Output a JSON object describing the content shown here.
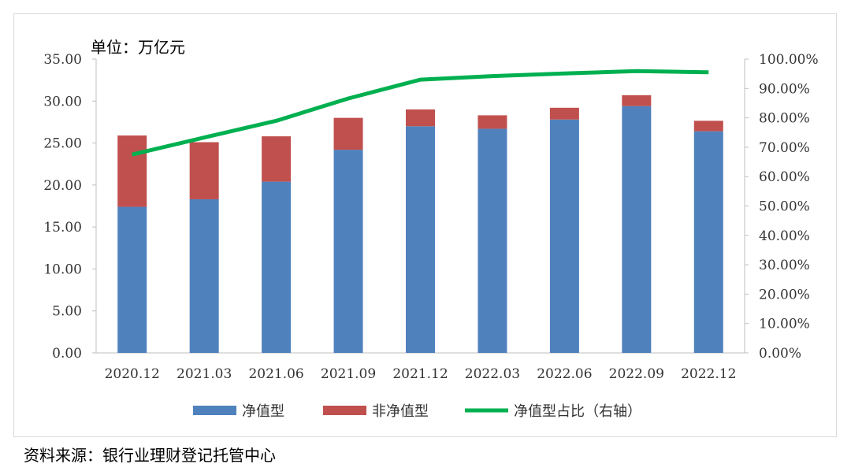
{
  "chart_data": {
    "type": "bar",
    "unit_label": "单位：万亿元",
    "source": "资料来源：银行业理财登记托管中心",
    "categories": [
      "2020.12",
      "2021.03",
      "2021.06",
      "2021.09",
      "2021.12",
      "2022.03",
      "2022.06",
      "2022.09",
      "2022.12"
    ],
    "series": [
      {
        "name": "净值型",
        "type": "bar",
        "stacked": true,
        "axis": "left",
        "color": "#4f81bd",
        "values": [
          17.4,
          18.3,
          20.4,
          24.2,
          27.0,
          26.7,
          27.8,
          29.4,
          26.4
        ]
      },
      {
        "name": "非净值型",
        "type": "bar",
        "stacked": true,
        "axis": "left",
        "color": "#c0504d",
        "values": [
          8.5,
          6.8,
          5.4,
          3.8,
          2.0,
          1.6,
          1.4,
          1.3,
          1.25
        ]
      },
      {
        "name": "净值型占比（右轴）",
        "type": "line",
        "axis": "right",
        "color": "#00b050",
        "values": [
          67.5,
          73.3,
          79.0,
          86.6,
          93.0,
          94.2,
          95.1,
          95.9,
          95.5
        ]
      }
    ],
    "left_axis": {
      "ylim": [
        0,
        35
      ],
      "ticks": [
        "0.00",
        "5.00",
        "10.00",
        "15.00",
        "20.00",
        "25.00",
        "30.00",
        "35.00"
      ]
    },
    "right_axis": {
      "ylim": [
        0,
        100
      ],
      "ticks": [
        "0.00%",
        "10.00%",
        "20.00%",
        "30.00%",
        "40.00%",
        "50.00%",
        "60.00%",
        "70.00%",
        "80.00%",
        "90.00%",
        "100.00%"
      ]
    },
    "legend_position": "bottom",
    "grid": false
  }
}
